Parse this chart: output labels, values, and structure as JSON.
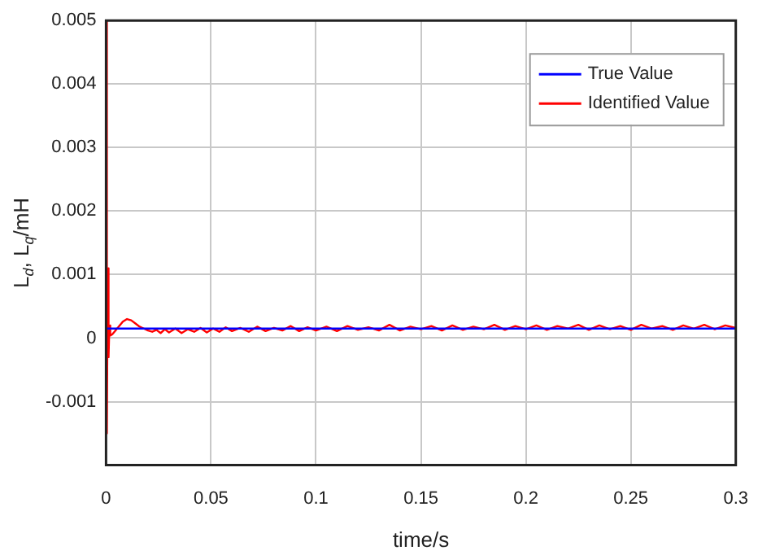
{
  "chart_data": {
    "type": "line",
    "xlabel": "time/s",
    "ylabel": "L$_{d}$, L$_{q}$/mH",
    "xlim": [
      0,
      0.3
    ],
    "xticks": [
      0,
      0.05,
      0.1,
      0.15,
      0.2,
      0.25,
      0.3
    ],
    "ylim": [
      -0.002,
      0.005
    ],
    "yticks": [
      -0.001,
      0,
      0.001,
      0.002,
      0.003,
      0.004,
      0.005
    ],
    "grid": true,
    "legend": "top right",
    "marker": "none",
    "line_style": "solid",
    "series": [
      {
        "name": "True Value",
        "color": "#0000ff",
        "x": [
          0,
          0.3
        ],
        "values": [
          0.00015,
          0.00015
        ]
      },
      {
        "name": "Identified Value",
        "color": "#ff0000",
        "x": [
          0,
          0.0004,
          0.0008,
          0.0012,
          0.0016,
          0.002,
          0.003,
          0.004,
          0.006,
          0.008,
          0.01,
          0.012,
          0.014,
          0.016,
          0.018,
          0.02,
          0.022,
          0.024,
          0.026,
          0.028,
          0.03,
          0.033,
          0.036,
          0.039,
          0.042,
          0.045,
          0.048,
          0.051,
          0.054,
          0.057,
          0.06,
          0.064,
          0.068,
          0.072,
          0.076,
          0.08,
          0.084,
          0.088,
          0.092,
          0.096,
          0.1,
          0.105,
          0.11,
          0.115,
          0.12,
          0.125,
          0.13,
          0.135,
          0.14,
          0.145,
          0.15,
          0.155,
          0.16,
          0.165,
          0.17,
          0.175,
          0.18,
          0.185,
          0.19,
          0.195,
          0.2,
          0.205,
          0.21,
          0.215,
          0.22,
          0.225,
          0.23,
          0.235,
          0.24,
          0.245,
          0.25,
          0.255,
          0.26,
          0.265,
          0.27,
          0.275,
          0.28,
          0.285,
          0.29,
          0.295,
          0.3
        ],
        "values": [
          0.005,
          -0.0015,
          0.0011,
          -0.0003,
          0.0002,
          4e-05,
          6e-05,
          0.0001,
          0.00018,
          0.00026,
          0.0003,
          0.00028,
          0.00023,
          0.00018,
          0.00015,
          0.00012,
          0.0001,
          0.00013,
          8e-05,
          0.00014,
          9e-05,
          0.00015,
          8e-05,
          0.00014,
          0.0001,
          0.00016,
          9e-05,
          0.00015,
          0.0001,
          0.00017,
          0.00011,
          0.00016,
          0.0001,
          0.00018,
          0.00011,
          0.00016,
          0.00012,
          0.00019,
          0.00011,
          0.00017,
          0.00012,
          0.00018,
          0.00011,
          0.00019,
          0.00013,
          0.00017,
          0.00012,
          0.00021,
          0.00012,
          0.00018,
          0.00014,
          0.00019,
          0.00012,
          0.0002,
          0.00013,
          0.00018,
          0.00014,
          0.00021,
          0.00013,
          0.00019,
          0.00014,
          0.0002,
          0.00013,
          0.00019,
          0.00015,
          0.00021,
          0.00013,
          0.0002,
          0.00014,
          0.00019,
          0.00013,
          0.00021,
          0.00015,
          0.00019,
          0.00013,
          0.0002,
          0.00015,
          0.00021,
          0.00014,
          0.0002,
          0.00016
        ]
      }
    ]
  }
}
